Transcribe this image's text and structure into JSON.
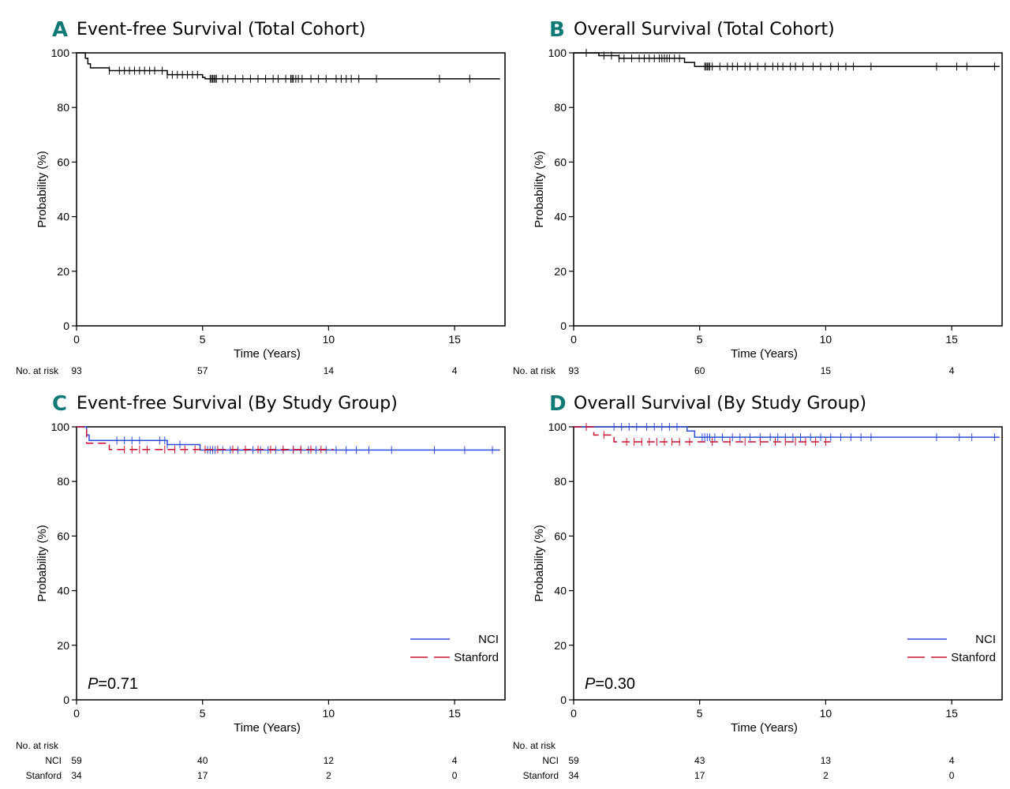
{
  "chart_data": [
    {
      "type": "line",
      "panel_label": "A",
      "title": "Event-free Survival (Total Cohort)",
      "xlabel": "Time (Years)",
      "ylabel": "Probability (%)",
      "xlim": [
        0,
        17
      ],
      "ylim": [
        0,
        100
      ],
      "x_ticks": [
        0,
        5,
        10,
        15
      ],
      "y_ticks": [
        0,
        20,
        40,
        60,
        80,
        100
      ],
      "series": [
        {
          "name": "Total",
          "color": "#000000",
          "dash": "",
          "steps": [
            [
              0,
              100
            ],
            [
              0.35,
              98
            ],
            [
              0.45,
              96
            ],
            [
              0.55,
              94.5
            ],
            [
              1.3,
              93.5
            ],
            [
              3.6,
              92
            ],
            [
              5.0,
              91
            ],
            [
              5.1,
              90.5
            ],
            [
              16.8,
              90.5
            ]
          ],
          "censors": [
            1.3,
            1.7,
            1.9,
            2.1,
            2.3,
            2.5,
            2.7,
            2.9,
            3.1,
            3.4,
            3.6,
            3.8,
            4.0,
            4.2,
            4.4,
            4.6,
            4.8,
            5.3,
            5.35,
            5.4,
            5.45,
            5.5,
            5.55,
            5.8,
            6.0,
            6.3,
            6.6,
            6.9,
            7.2,
            7.5,
            7.8,
            8.0,
            8.3,
            8.5,
            8.55,
            8.6,
            8.7,
            8.8,
            8.95,
            9.3,
            9.6,
            9.9,
            10.3,
            10.5,
            10.7,
            10.9,
            11.2,
            11.9,
            14.4,
            15.6
          ]
        }
      ],
      "risk_table": {
        "header": "No. at risk",
        "rows": [
          {
            "label": "",
            "values": [
              "93",
              "57",
              "14",
              "4"
            ]
          }
        ]
      }
    },
    {
      "type": "line",
      "panel_label": "B",
      "title": "Overall Survival (Total Cohort)",
      "xlabel": "Time (Years)",
      "ylabel": "Probability (%)",
      "xlim": [
        0,
        17
      ],
      "ylim": [
        0,
        100
      ],
      "x_ticks": [
        0,
        5,
        10,
        15
      ],
      "y_ticks": [
        0,
        20,
        40,
        60,
        80,
        100
      ],
      "series": [
        {
          "name": "Total",
          "color": "#000000",
          "dash": "",
          "steps": [
            [
              0,
              100
            ],
            [
              1.0,
              99
            ],
            [
              1.8,
              98
            ],
            [
              4.4,
              96.5
            ],
            [
              4.8,
              95
            ],
            [
              16.9,
              95
            ]
          ],
          "censors": [
            0.5,
            1.2,
            1.5,
            1.8,
            2.0,
            2.3,
            2.6,
            2.8,
            3.0,
            3.2,
            3.4,
            3.5,
            3.6,
            3.7,
            3.8,
            4.0,
            4.2,
            5.2,
            5.25,
            5.3,
            5.35,
            5.4,
            5.5,
            5.8,
            6.1,
            6.3,
            6.5,
            6.8,
            7.0,
            7.3,
            7.6,
            7.9,
            8.1,
            8.3,
            8.6,
            8.8,
            9.1,
            9.5,
            9.8,
            10.2,
            10.5,
            10.8,
            11.1,
            11.8,
            14.4,
            15.2,
            15.6,
            16.7
          ]
        }
      ],
      "risk_table": {
        "header": "No. at risk",
        "rows": [
          {
            "label": "",
            "values": [
              "93",
              "60",
              "15",
              "4"
            ]
          }
        ]
      }
    },
    {
      "type": "line",
      "panel_label": "C",
      "title": "Event-free Survival (By Study Group)",
      "xlabel": "Time (Years)",
      "ylabel": "Probability (%)",
      "xlim": [
        0,
        17
      ],
      "ylim": [
        0,
        100
      ],
      "x_ticks": [
        0,
        5,
        10,
        15
      ],
      "y_ticks": [
        0,
        20,
        40,
        60,
        80,
        100
      ],
      "p_value": "=0.71",
      "p_symbol": "P",
      "series": [
        {
          "name": "NCI",
          "color": "#2b4bd8",
          "dash": "",
          "steps": [
            [
              0,
              100
            ],
            [
              0.4,
              97
            ],
            [
              0.5,
              95
            ],
            [
              3.6,
              93.5
            ],
            [
              4.9,
              91.5
            ],
            [
              16.8,
              91.5
            ]
          ],
          "censors": [
            1.6,
            1.9,
            2.2,
            2.5,
            3.3,
            3.5,
            3.6,
            4.1,
            5.2,
            5.3,
            5.4,
            5.5,
            5.8,
            6.1,
            6.4,
            6.7,
            7.0,
            7.3,
            7.6,
            7.9,
            8.2,
            8.6,
            8.9,
            9.2,
            9.5,
            9.9,
            10.3,
            10.7,
            11.1,
            11.6,
            12.5,
            14.2,
            15.4,
            16.5
          ]
        },
        {
          "name": "Stanford",
          "color": "#c8102e",
          "dash": "10,6",
          "steps": [
            [
              0,
              100
            ],
            [
              0.4,
              94
            ],
            [
              1.3,
              91.7
            ],
            [
              10.2,
              91.7
            ]
          ],
          "censors": [
            1.9,
            2.2,
            2.5,
            2.8,
            3.5,
            3.9,
            4.3,
            4.7,
            5.1,
            5.6,
            6.2,
            6.7,
            7.2,
            7.7,
            8.2,
            8.6,
            8.9,
            9.3,
            9.7
          ]
        }
      ],
      "legend": [
        {
          "label": "NCI",
          "color": "#2b4bd8",
          "dash": ""
        },
        {
          "label": "Stanford",
          "color": "#c8102e",
          "dash": "10,6"
        }
      ],
      "risk_table": {
        "header": "No. at risk",
        "rows": [
          {
            "label": "NCI",
            "values": [
              "59",
              "40",
              "12",
              "4"
            ]
          },
          {
            "label": "Stanford",
            "values": [
              "34",
              "17",
              "2",
              "0"
            ]
          }
        ]
      }
    },
    {
      "type": "line",
      "panel_label": "D",
      "title": "Overall Survival (By Study Group)",
      "xlabel": "Time (Years)",
      "ylabel": "Probability (%)",
      "xlim": [
        0,
        17
      ],
      "ylim": [
        0,
        100
      ],
      "x_ticks": [
        0,
        5,
        10,
        15
      ],
      "y_ticks": [
        0,
        20,
        40,
        60,
        80,
        100
      ],
      "p_value": "=0.30",
      "p_symbol": "P",
      "series": [
        {
          "name": "NCI",
          "color": "#2b4bd8",
          "dash": "",
          "steps": [
            [
              0,
              100
            ],
            [
              4.5,
              98.5
            ],
            [
              4.8,
              96.2
            ],
            [
              16.9,
              96.2
            ]
          ],
          "censors": [
            1.6,
            1.9,
            2.2,
            2.5,
            2.9,
            3.2,
            3.5,
            3.8,
            4.1,
            5.1,
            5.2,
            5.3,
            5.4,
            5.6,
            5.9,
            6.3,
            6.6,
            7.0,
            7.4,
            7.8,
            8.1,
            8.4,
            8.7,
            9.0,
            9.4,
            9.8,
            10.2,
            10.6,
            11.0,
            11.4,
            11.8,
            14.4,
            15.3,
            15.8,
            16.7
          ]
        },
        {
          "name": "Stanford",
          "color": "#c8102e",
          "dash": "10,6",
          "steps": [
            [
              0,
              100
            ],
            [
              0.8,
              97
            ],
            [
              1.6,
              94.5
            ],
            [
              10.2,
              94.5
            ]
          ],
          "censors": [
            0.5,
            1.2,
            2.1,
            2.4,
            2.7,
            3.0,
            3.3,
            3.6,
            3.9,
            4.2,
            4.6,
            5.5,
            6.2,
            6.8,
            7.4,
            8.0,
            8.4,
            8.8,
            9.2,
            9.6,
            10.0
          ]
        }
      ],
      "legend": [
        {
          "label": "NCI",
          "color": "#2b4bd8",
          "dash": ""
        },
        {
          "label": "Stanford",
          "color": "#c8102e",
          "dash": "10,6"
        }
      ],
      "risk_table": {
        "header": "No. at risk",
        "rows": [
          {
            "label": "NCI",
            "values": [
              "59",
              "43",
              "13",
              "4"
            ]
          },
          {
            "label": "Stanford",
            "values": [
              "34",
              "17",
              "2",
              "0"
            ]
          }
        ]
      }
    }
  ]
}
